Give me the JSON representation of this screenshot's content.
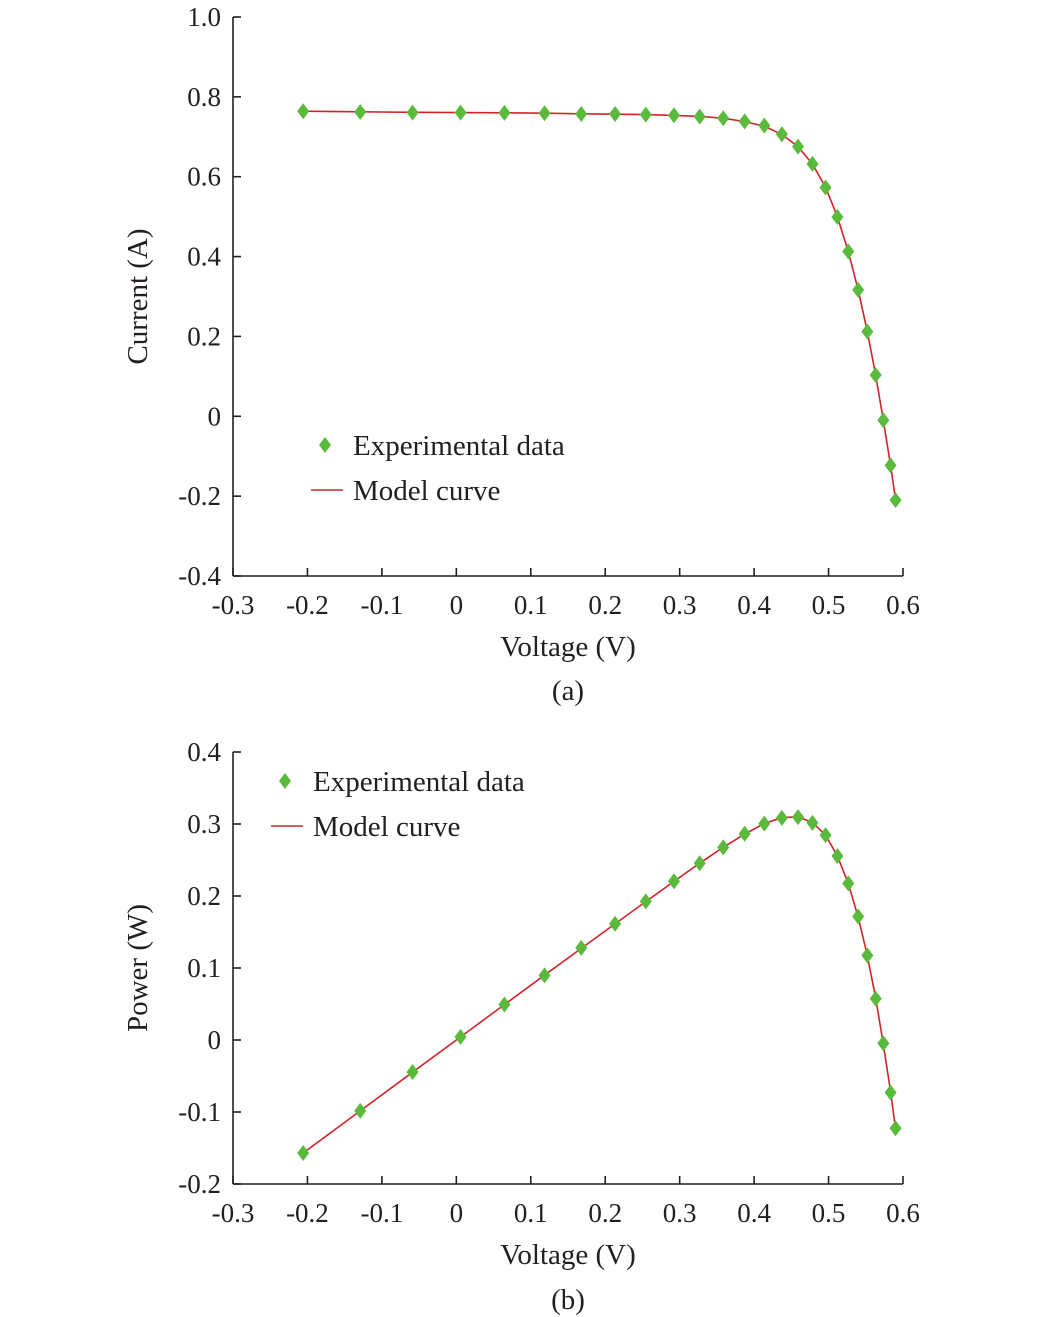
{
  "chart_data": [
    {
      "type": "scatter",
      "xlabel": "Voltage (V)",
      "ylabel": "Current (A)",
      "caption": "(a)",
      "xlim": [
        -0.3,
        0.6
      ],
      "ylim": [
        -0.4,
        1.0
      ],
      "xticks": [
        "-0.3",
        "-0.2",
        "-0.1",
        "0",
        "0.1",
        "0.2",
        "0.3",
        "0.4",
        "0.5",
        "0.6"
      ],
      "yticks": [
        "-0.4",
        "-0.2",
        "0",
        "0.2",
        "0.4",
        "0.6",
        "0.8",
        "1.0"
      ],
      "legend_position": "lower-left",
      "series": [
        {
          "name": "Experimental data",
          "kind": "markers",
          "color": "#5aba3c",
          "x": [
            -0.2057,
            -0.1291,
            -0.0588,
            0.0057,
            0.0646,
            0.1185,
            0.1678,
            0.2132,
            0.2545,
            0.2924,
            0.3269,
            0.3585,
            0.3873,
            0.4137,
            0.4373,
            0.459,
            0.4784,
            0.496,
            0.5119,
            0.5265,
            0.5398,
            0.5521,
            0.5633,
            0.5736,
            0.5833,
            0.59
          ],
          "y": [
            0.764,
            0.762,
            0.7605,
            0.7605,
            0.76,
            0.759,
            0.757,
            0.757,
            0.7555,
            0.754,
            0.7505,
            0.7465,
            0.7385,
            0.728,
            0.7065,
            0.6755,
            0.632,
            0.573,
            0.499,
            0.413,
            0.3165,
            0.212,
            0.1035,
            -0.01,
            -0.123,
            -0.21
          ]
        },
        {
          "name": "Model curve",
          "kind": "line",
          "color": "#d2232a",
          "x": [
            -0.2057,
            -0.1291,
            -0.0588,
            0.0057,
            0.0646,
            0.1185,
            0.1678,
            0.2132,
            0.2545,
            0.2924,
            0.3269,
            0.3585,
            0.3873,
            0.4137,
            0.4373,
            0.459,
            0.4784,
            0.496,
            0.5119,
            0.5265,
            0.5398,
            0.5521,
            0.5633,
            0.5736,
            0.5833,
            0.59
          ],
          "y": [
            0.764,
            0.7625,
            0.7612,
            0.7605,
            0.76,
            0.759,
            0.7575,
            0.7565,
            0.7555,
            0.7535,
            0.751,
            0.7465,
            0.738,
            0.7265,
            0.706,
            0.6755,
            0.6315,
            0.5735,
            0.4995,
            0.4125,
            0.316,
            0.2125,
            0.103,
            -0.0095,
            -0.123,
            -0.21
          ]
        }
      ]
    },
    {
      "type": "scatter",
      "xlabel": "Voltage (V)",
      "ylabel": "Power (W)",
      "caption": "(b)",
      "xlim": [
        -0.3,
        0.6
      ],
      "ylim": [
        -0.2,
        0.4
      ],
      "xticks": [
        "-0.3",
        "-0.2",
        "-0.1",
        "0",
        "0.1",
        "0.2",
        "0.3",
        "0.4",
        "0.5",
        "0.6"
      ],
      "yticks": [
        "-0.2",
        "-0.1",
        "0",
        "0.1",
        "0.2",
        "0.3",
        "0.4"
      ],
      "legend_position": "top-left",
      "series": [
        {
          "name": "Experimental data",
          "kind": "markers",
          "color": "#5aba3c",
          "x": [
            -0.2057,
            -0.1291,
            -0.0588,
            0.0057,
            0.0646,
            0.1185,
            0.1678,
            0.2132,
            0.2545,
            0.2924,
            0.3269,
            0.3585,
            0.3873,
            0.4137,
            0.4373,
            0.459,
            0.4784,
            0.496,
            0.5119,
            0.5265,
            0.5398,
            0.5521,
            0.5633,
            0.5736,
            0.5833,
            0.59
          ],
          "y": [
            -0.157,
            -0.0985,
            -0.0445,
            0.0043,
            0.0493,
            0.0898,
            0.128,
            0.1615,
            0.1925,
            0.2205,
            0.2455,
            0.2675,
            0.2865,
            0.3005,
            0.3085,
            0.3095,
            0.3015,
            0.2845,
            0.2555,
            0.2175,
            0.1715,
            0.1175,
            0.0575,
            -0.0045,
            -0.073,
            -0.1225
          ]
        },
        {
          "name": "Model curve",
          "kind": "line",
          "color": "#d2232a",
          "x": [
            -0.2057,
            -0.1291,
            -0.0588,
            0.0057,
            0.0646,
            0.1185,
            0.1678,
            0.2132,
            0.2545,
            0.2924,
            0.3269,
            0.3585,
            0.3873,
            0.4137,
            0.4373,
            0.459,
            0.4784,
            0.496,
            0.5119,
            0.5265,
            0.5398,
            0.5521,
            0.5633,
            0.5736,
            0.5833,
            0.59
          ],
          "y": [
            -0.157,
            -0.0985,
            -0.0447,
            0.0043,
            0.0492,
            0.09,
            0.1272,
            0.1613,
            0.1922,
            0.2203,
            0.2455,
            0.2677,
            0.286,
            0.3007,
            0.3088,
            0.31,
            0.302,
            0.2845,
            0.2557,
            0.2172,
            0.1706,
            0.1173,
            0.058,
            -0.0055,
            -0.0718,
            -0.1239
          ]
        }
      ]
    }
  ]
}
